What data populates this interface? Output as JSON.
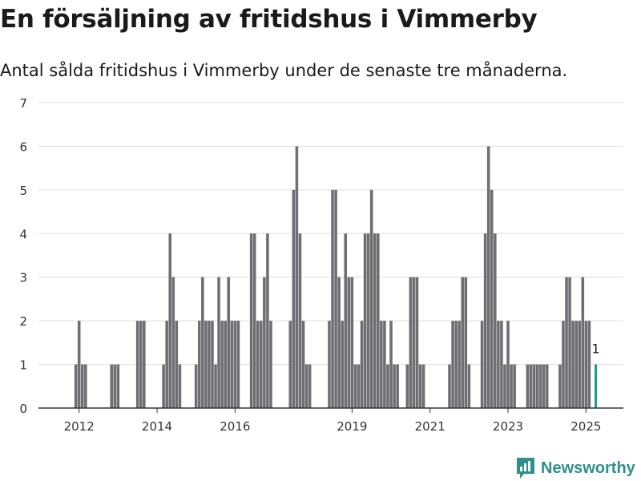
{
  "header": {
    "title": "En försäljning av fritidshus i Vimmerby",
    "subtitle": "Antal sålda fritidshus i Vimmerby under de senaste tre månaderna."
  },
  "brand": {
    "name": "Newsworthy",
    "icon": "newsworthy-logo-icon",
    "color": "#2f8f8a"
  },
  "colors": {
    "bar": "#6e6e73",
    "highlight": "#1e9a8e",
    "grid": "#dddddd",
    "axis": "#333333"
  },
  "chart_data": {
    "type": "bar",
    "title": "En försäljning av fritidshus i Vimmerby",
    "subtitle": "Antal sålda fritidshus i Vimmerby under de senaste tre månaderna.",
    "xlabel": "",
    "ylabel": "",
    "ylim": [
      0,
      7
    ],
    "yticks": [
      0,
      1,
      2,
      3,
      4,
      5,
      6,
      7
    ],
    "grid": true,
    "x_start": "2011-01",
    "x_end": "2025-12",
    "xticks": [
      {
        "date": "2012-01",
        "label": "2012"
      },
      {
        "date": "2014-01",
        "label": "2014"
      },
      {
        "date": "2016-01",
        "label": "2016"
      },
      {
        "date": "2019-01",
        "label": "2019"
      },
      {
        "date": "2021-01",
        "label": "2021"
      },
      {
        "date": "2023-01",
        "label": "2023"
      },
      {
        "date": "2025-01",
        "label": "2025"
      }
    ],
    "series": [
      {
        "values": [
          {
            "date": "2011-12",
            "value": 1
          },
          {
            "date": "2012-01",
            "value": 2
          },
          {
            "date": "2012-02",
            "value": 1
          },
          {
            "date": "2012-03",
            "value": 1
          },
          {
            "date": "2012-11",
            "value": 1
          },
          {
            "date": "2012-12",
            "value": 1
          },
          {
            "date": "2013-01",
            "value": 1
          },
          {
            "date": "2013-07",
            "value": 2
          },
          {
            "date": "2013-08",
            "value": 2
          },
          {
            "date": "2013-09",
            "value": 2
          },
          {
            "date": "2014-03",
            "value": 1
          },
          {
            "date": "2014-04",
            "value": 2
          },
          {
            "date": "2014-05",
            "value": 4
          },
          {
            "date": "2014-06",
            "value": 3
          },
          {
            "date": "2014-07",
            "value": 2
          },
          {
            "date": "2014-08",
            "value": 1
          },
          {
            "date": "2015-01",
            "value": 1
          },
          {
            "date": "2015-02",
            "value": 2
          },
          {
            "date": "2015-03",
            "value": 3
          },
          {
            "date": "2015-04",
            "value": 2
          },
          {
            "date": "2015-05",
            "value": 2
          },
          {
            "date": "2015-06",
            "value": 2
          },
          {
            "date": "2015-07",
            "value": 1
          },
          {
            "date": "2015-08",
            "value": 3
          },
          {
            "date": "2015-09",
            "value": 2
          },
          {
            "date": "2015-10",
            "value": 2
          },
          {
            "date": "2015-11",
            "value": 3
          },
          {
            "date": "2015-12",
            "value": 2
          },
          {
            "date": "2016-01",
            "value": 2
          },
          {
            "date": "2016-02",
            "value": 2
          },
          {
            "date": "2016-06",
            "value": 4
          },
          {
            "date": "2016-07",
            "value": 4
          },
          {
            "date": "2016-08",
            "value": 2
          },
          {
            "date": "2016-09",
            "value": 2
          },
          {
            "date": "2016-10",
            "value": 3
          },
          {
            "date": "2016-11",
            "value": 4
          },
          {
            "date": "2016-12",
            "value": 2
          },
          {
            "date": "2017-06",
            "value": 2
          },
          {
            "date": "2017-07",
            "value": 5
          },
          {
            "date": "2017-08",
            "value": 6
          },
          {
            "date": "2017-09",
            "value": 4
          },
          {
            "date": "2017-10",
            "value": 2
          },
          {
            "date": "2017-11",
            "value": 1
          },
          {
            "date": "2017-12",
            "value": 1
          },
          {
            "date": "2018-06",
            "value": 2
          },
          {
            "date": "2018-07",
            "value": 5
          },
          {
            "date": "2018-08",
            "value": 5
          },
          {
            "date": "2018-09",
            "value": 3
          },
          {
            "date": "2018-10",
            "value": 2
          },
          {
            "date": "2018-11",
            "value": 4
          },
          {
            "date": "2018-12",
            "value": 3
          },
          {
            "date": "2019-01",
            "value": 3
          },
          {
            "date": "2019-02",
            "value": 1
          },
          {
            "date": "2019-03",
            "value": 1
          },
          {
            "date": "2019-04",
            "value": 2
          },
          {
            "date": "2019-05",
            "value": 4
          },
          {
            "date": "2019-06",
            "value": 4
          },
          {
            "date": "2019-07",
            "value": 5
          },
          {
            "date": "2019-08",
            "value": 4
          },
          {
            "date": "2019-09",
            "value": 4
          },
          {
            "date": "2019-10",
            "value": 2
          },
          {
            "date": "2019-11",
            "value": 2
          },
          {
            "date": "2019-12",
            "value": 1
          },
          {
            "date": "2020-01",
            "value": 2
          },
          {
            "date": "2020-02",
            "value": 1
          },
          {
            "date": "2020-03",
            "value": 1
          },
          {
            "date": "2020-06",
            "value": 1
          },
          {
            "date": "2020-07",
            "value": 3
          },
          {
            "date": "2020-08",
            "value": 3
          },
          {
            "date": "2020-09",
            "value": 3
          },
          {
            "date": "2020-10",
            "value": 1
          },
          {
            "date": "2020-11",
            "value": 1
          },
          {
            "date": "2021-07",
            "value": 1
          },
          {
            "date": "2021-08",
            "value": 2
          },
          {
            "date": "2021-09",
            "value": 2
          },
          {
            "date": "2021-10",
            "value": 2
          },
          {
            "date": "2021-11",
            "value": 3
          },
          {
            "date": "2021-12",
            "value": 3
          },
          {
            "date": "2022-01",
            "value": 1
          },
          {
            "date": "2022-05",
            "value": 2
          },
          {
            "date": "2022-06",
            "value": 4
          },
          {
            "date": "2022-07",
            "value": 6
          },
          {
            "date": "2022-08",
            "value": 5
          },
          {
            "date": "2022-09",
            "value": 4
          },
          {
            "date": "2022-10",
            "value": 2
          },
          {
            "date": "2022-11",
            "value": 2
          },
          {
            "date": "2022-12",
            "value": 1
          },
          {
            "date": "2023-01",
            "value": 2
          },
          {
            "date": "2023-02",
            "value": 1
          },
          {
            "date": "2023-03",
            "value": 1
          },
          {
            "date": "2023-07",
            "value": 1
          },
          {
            "date": "2023-08",
            "value": 1
          },
          {
            "date": "2023-09",
            "value": 1
          },
          {
            "date": "2023-10",
            "value": 1
          },
          {
            "date": "2023-11",
            "value": 1
          },
          {
            "date": "2023-12",
            "value": 1
          },
          {
            "date": "2024-01",
            "value": 1
          },
          {
            "date": "2024-05",
            "value": 1
          },
          {
            "date": "2024-06",
            "value": 2
          },
          {
            "date": "2024-07",
            "value": 3
          },
          {
            "date": "2024-08",
            "value": 3
          },
          {
            "date": "2024-09",
            "value": 2
          },
          {
            "date": "2024-10",
            "value": 2
          },
          {
            "date": "2024-11",
            "value": 2
          },
          {
            "date": "2024-12",
            "value": 3
          },
          {
            "date": "2025-01",
            "value": 2
          },
          {
            "date": "2025-02",
            "value": 2
          }
        ]
      }
    ],
    "highlight": {
      "date": "2025-04",
      "value": 1,
      "label": "1"
    }
  }
}
